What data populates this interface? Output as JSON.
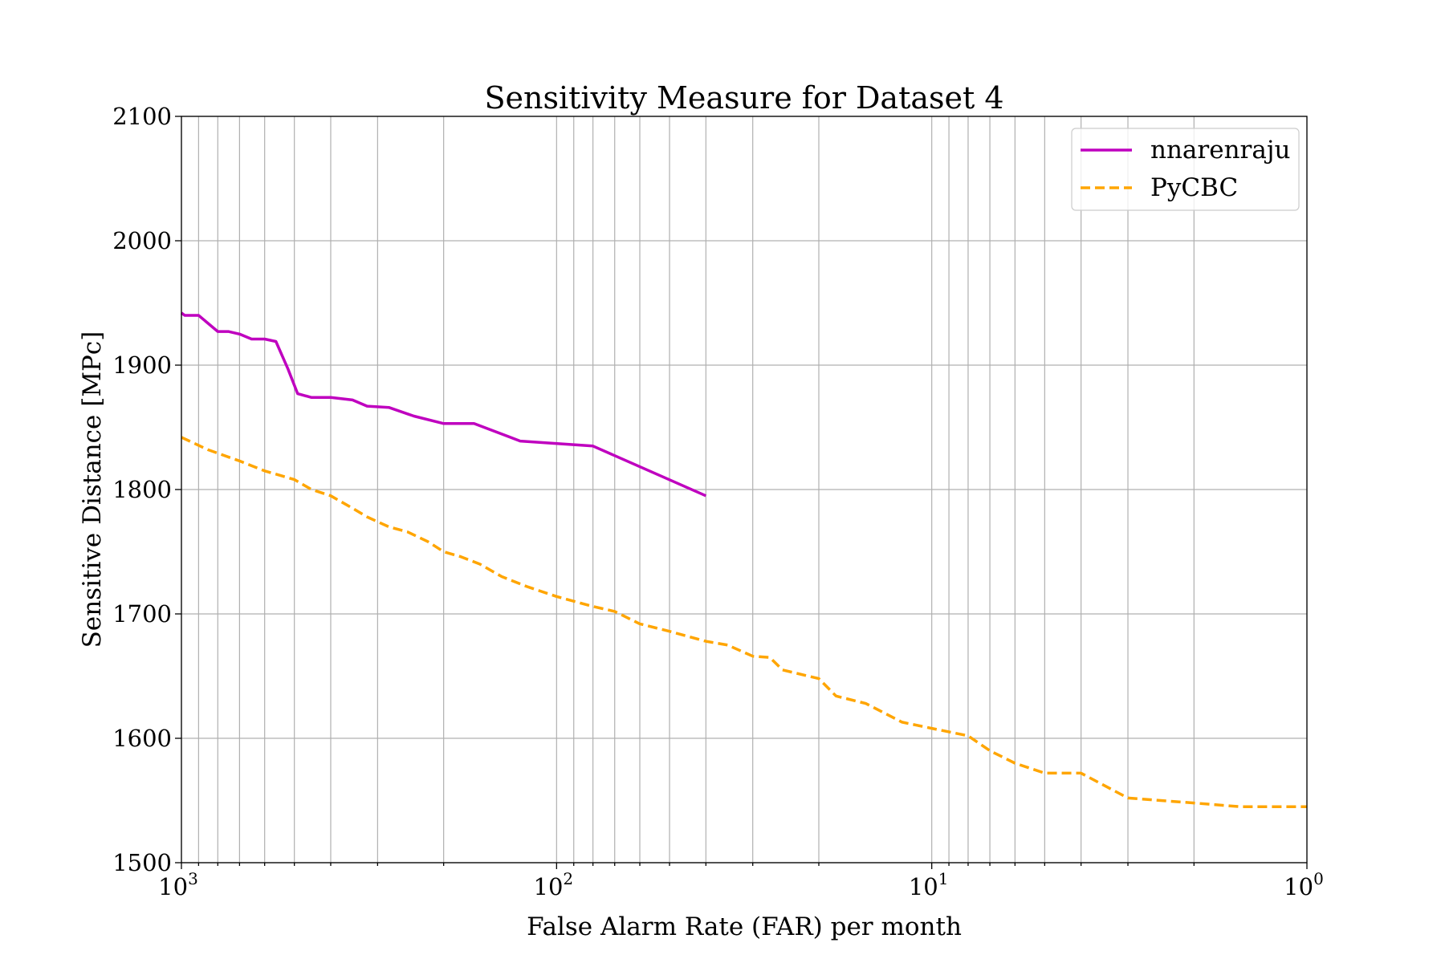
{
  "chart_data": {
    "type": "line",
    "title": "Sensitivity Measure for Dataset 4",
    "xlabel": "False Alarm Rate (FAR) per month",
    "ylabel": "Sensitive Distance [MPc]",
    "xscale": "log",
    "x_reversed": true,
    "xlim": [
      1000,
      1
    ],
    "ylim": [
      1500,
      2100
    ],
    "grid": "major-and-minor-x",
    "legend_position": "top-right",
    "x_ticks": [
      {
        "base": "10",
        "exp": "3",
        "value": 1000
      },
      {
        "base": "10",
        "exp": "2",
        "value": 100
      },
      {
        "base": "10",
        "exp": "1",
        "value": 10
      },
      {
        "base": "10",
        "exp": "0",
        "value": 1
      }
    ],
    "y_ticks": [
      "1500",
      "1600",
      "1700",
      "1800",
      "1900",
      "2000",
      "2100"
    ],
    "series": [
      {
        "name": "nnarenraju",
        "color": "#bf00bf",
        "style": "solid",
        "x": [
          1000,
          980,
          900,
          800,
          750,
          700,
          650,
          600,
          560,
          520,
          490,
          450,
          400,
          350,
          320,
          280,
          240,
          200,
          166,
          125,
          80,
          40
        ],
        "y": [
          1942,
          1940,
          1940,
          1927,
          1927,
          1925,
          1921,
          1921,
          1919,
          1897,
          1877,
          1874,
          1874,
          1872,
          1867,
          1866,
          1859,
          1853,
          1853,
          1839,
          1835,
          1795
        ]
      },
      {
        "name": "PyCBC",
        "color": "#ffa500",
        "style": "dashed",
        "x": [
          1000,
          850,
          700,
          600,
          500,
          450,
          400,
          350,
          320,
          280,
          250,
          220,
          200,
          180,
          160,
          140,
          120,
          100,
          80,
          70,
          60,
          50,
          40,
          35,
          30,
          27,
          25,
          20,
          18,
          15,
          12,
          10,
          8,
          7,
          6,
          5,
          4,
          3,
          2,
          1.5,
          1
        ],
        "y": [
          1842,
          1832,
          1823,
          1815,
          1808,
          1800,
          1795,
          1785,
          1778,
          1770,
          1766,
          1758,
          1750,
          1746,
          1740,
          1730,
          1722,
          1714,
          1706,
          1702,
          1692,
          1686,
          1678,
          1675,
          1666,
          1665,
          1655,
          1648,
          1634,
          1628,
          1613,
          1608,
          1602,
          1590,
          1580,
          1572,
          1572,
          1552,
          1548,
          1545,
          1545
        ]
      }
    ]
  }
}
